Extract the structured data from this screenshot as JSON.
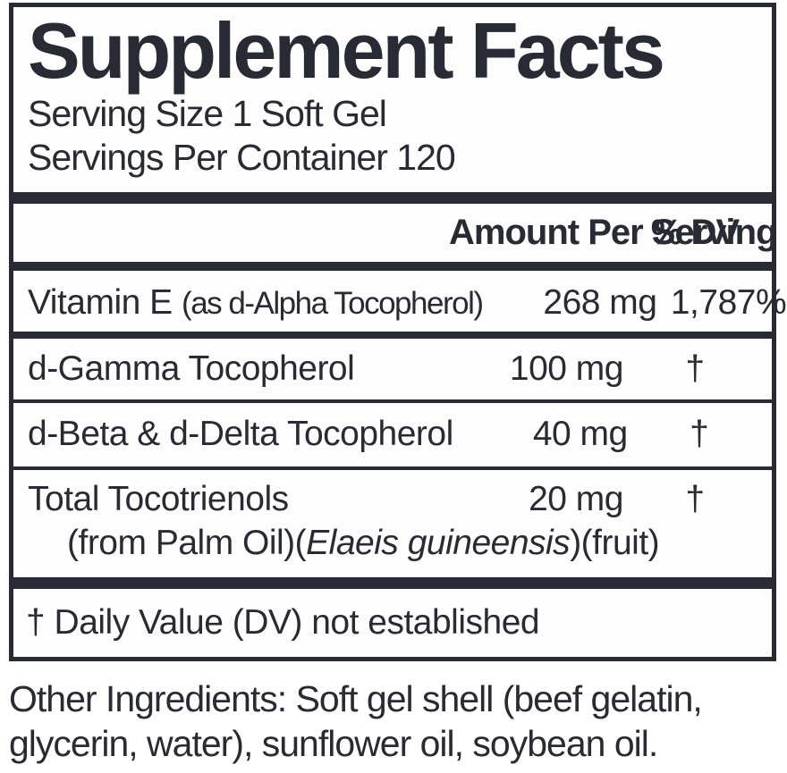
{
  "colors": {
    "ink": "#282b33",
    "background": "#fdfdfd"
  },
  "label": {
    "title": "Supplement Facts",
    "serving_size": "Serving Size 1 Soft Gel",
    "servings_per_container": "Servings Per Container 120",
    "header": {
      "amount": "Amount Per Serving",
      "dv": "% DV"
    },
    "rows": [
      {
        "name": "Vitamin E",
        "name_note": "(as d-Alpha Tocopherol)",
        "amount": "268 mg",
        "dv": "1,787%"
      },
      {
        "name": "d-Gamma Tocopherol",
        "amount": "100 mg",
        "dv": "†"
      },
      {
        "name": "d-Beta & d-Delta Tocopherol",
        "amount": "40 mg",
        "dv": "†"
      },
      {
        "name": "Total Tocotrienols",
        "amount": "20 mg",
        "dv": "†",
        "sub_prefix": "(from Palm Oil)(",
        "sub_italic": "Elaeis guineensis",
        "sub_suffix": ")(fruit)"
      }
    ],
    "footnote": "† Daily Value (DV) not established",
    "other_ingredients": "Other Ingredients: Soft gel shell (beef gelatin, glycerin, water), sunflower oil, soybean oil."
  }
}
